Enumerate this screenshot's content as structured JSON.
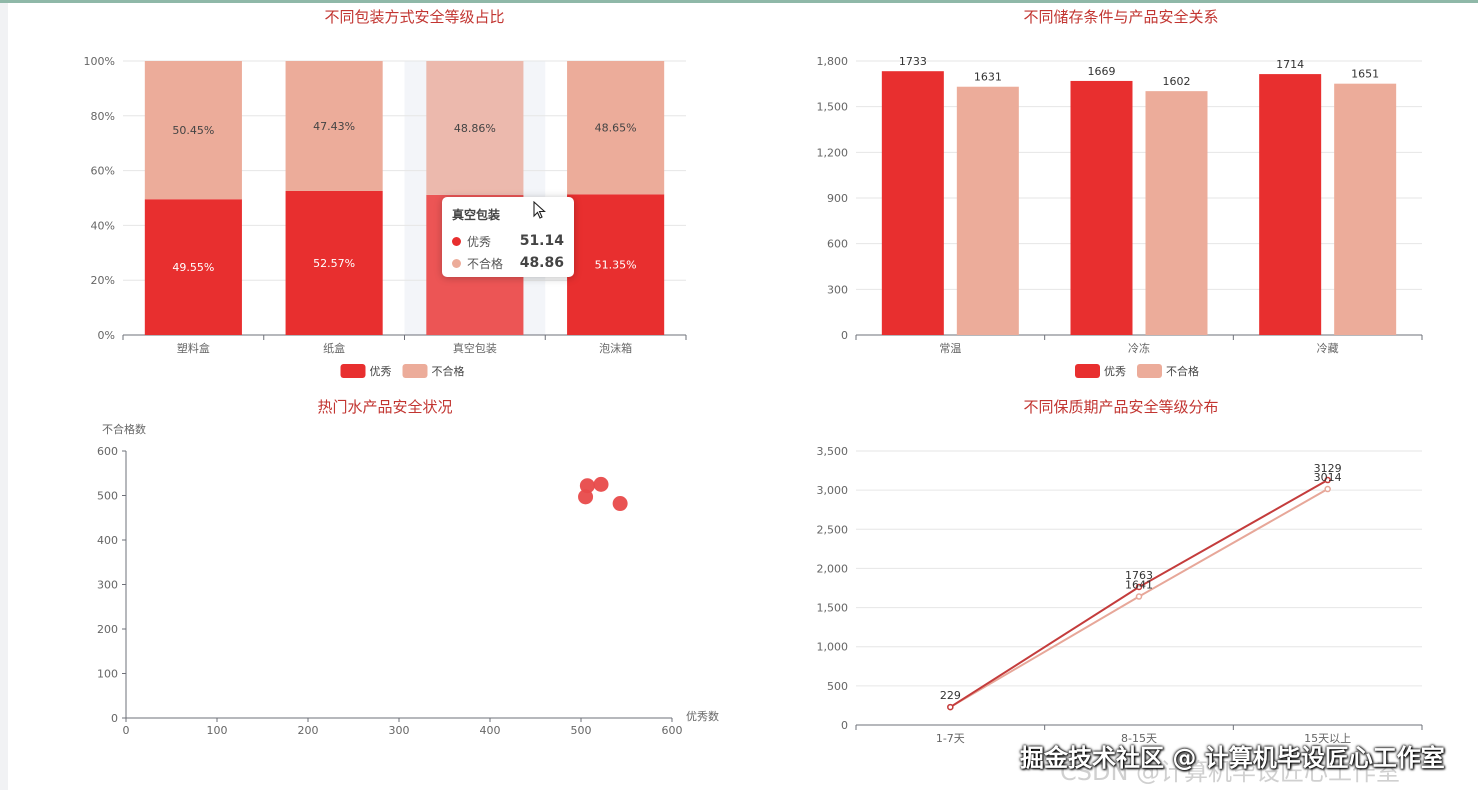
{
  "charts": [
    {
      "type": "bar",
      "stacked": true,
      "percent": true,
      "title": "不同包装方式安全等级占比",
      "categories": [
        "塑料盒",
        "纸盒",
        "真空包装",
        "泡沫箱"
      ],
      "series": [
        {
          "name": "优秀",
          "values": [
            49.55,
            52.57,
            51.14,
            51.35
          ],
          "labels": [
            "49.55%",
            "52.57%",
            "",
            "51.35%"
          ],
          "color": "#e82f2f"
        },
        {
          "name": "不合格",
          "values": [
            50.45,
            47.43,
            48.86,
            48.65
          ],
          "labels": [
            "50.45%",
            "47.43%",
            "48.86%",
            "48.65%"
          ],
          "color": "#ecac9a"
        }
      ],
      "yticks": [
        "0%",
        "20%",
        "40%",
        "60%",
        "80%",
        "100%"
      ],
      "ylim": [
        0,
        100
      ],
      "highlight_index": 2,
      "legend": "bottom-center"
    },
    {
      "type": "bar",
      "title": "不同储存条件与产品安全关系",
      "categories": [
        "常温",
        "冷冻",
        "冷藏"
      ],
      "series": [
        {
          "name": "优秀",
          "values": [
            1733,
            1669,
            1714
          ],
          "color": "#e82f2f"
        },
        {
          "name": "不合格",
          "values": [
            1631,
            1602,
            1651
          ],
          "color": "#ecac9a"
        }
      ],
      "yticks": [
        "0",
        "300",
        "600",
        "900",
        "1,200",
        "1,500",
        "1,800"
      ],
      "ylim": [
        0,
        1800
      ],
      "legend": "bottom-center"
    },
    {
      "type": "scatter",
      "title": "热门水产品安全状况",
      "xlabel": "优秀数",
      "ylabel": "不合格数",
      "xlim": [
        0,
        600
      ],
      "ylim": [
        0,
        600
      ],
      "xticks": [
        "0",
        "100",
        "200",
        "300",
        "400",
        "500",
        "600"
      ],
      "yticks": [
        "0",
        "100",
        "200",
        "300",
        "400",
        "500",
        "600"
      ],
      "points": [
        {
          "x": 505,
          "y": 497
        },
        {
          "x": 507,
          "y": 522
        },
        {
          "x": 522,
          "y": 525
        },
        {
          "x": 543,
          "y": 482
        }
      ],
      "color": "#e84a4a"
    },
    {
      "type": "line",
      "title": "不同保质期产品安全等级分布",
      "categories": [
        "1-7天",
        "8-15天",
        "15天以上"
      ],
      "series": [
        {
          "name": "优秀",
          "values": [
            229,
            1763,
            3129
          ],
          "color": "#c43c3c"
        },
        {
          "name": "不合格",
          "values": [
            229,
            1641,
            3014
          ],
          "color": "#e7a799"
        }
      ],
      "yticks": [
        "0",
        "500",
        "1,000",
        "1,500",
        "2,000",
        "2,500",
        "3,000",
        "3,500"
      ],
      "ylim": [
        0,
        3500
      ]
    }
  ],
  "tooltip": {
    "title": "真空包装",
    "rows": [
      {
        "name": "优秀",
        "value": "51.14",
        "color": "#e82f2f"
      },
      {
        "name": "不合格",
        "value": "48.86",
        "color": "#ecac9a"
      }
    ]
  },
  "watermark": {
    "text": "掘金技术社区 @ 计算机毕设匠心工作室",
    "background_text": "CSDN @计算机毕设匠心工作室"
  }
}
